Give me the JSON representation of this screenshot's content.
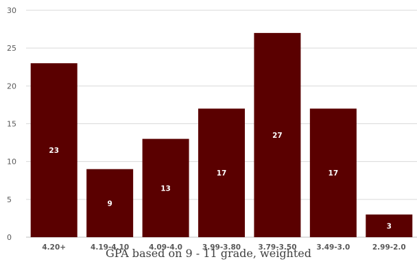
{
  "chart_data": {
    "type": "bar",
    "title": "",
    "xlabel": "GPA based on 9 - 11 grade, weighted",
    "ylabel": "",
    "categories": [
      "4.20+",
      "4.19-4.10",
      "4.09-4.0",
      "3.99-3.80",
      "3.79-3.50",
      "3.49-3.0",
      "2.99-2.0"
    ],
    "values": [
      23,
      9,
      13,
      17,
      27,
      17,
      3
    ],
    "ylim": [
      0,
      30
    ],
    "yticks": [
      0,
      5,
      10,
      15,
      20,
      25,
      30
    ],
    "grid": true,
    "legend": "none",
    "bar_color": "#5a0000",
    "data_label_color": "#ffffff"
  }
}
